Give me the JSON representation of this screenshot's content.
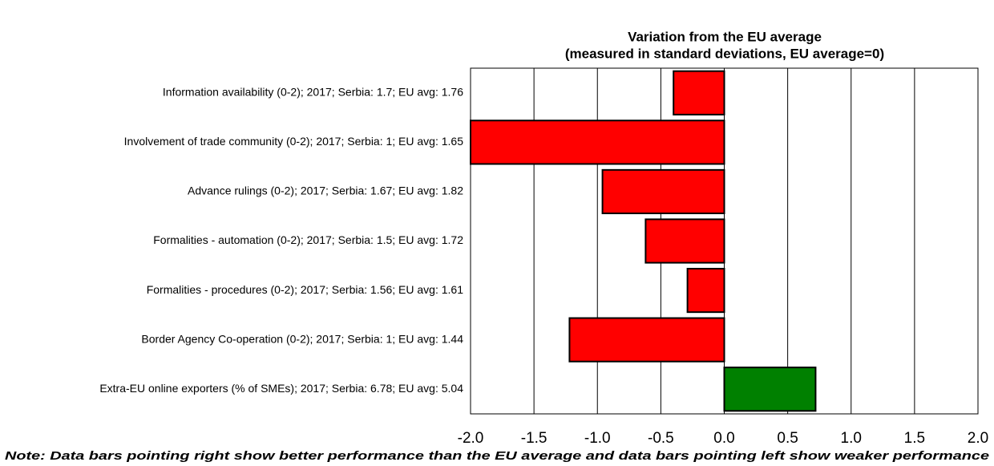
{
  "chart_data": {
    "type": "barh",
    "title": "Variation from the EU average",
    "subtitle": "(measured in standard deviations, EU average=0)",
    "note": "Note: Data bars pointing right show better performance than the EU average and data bars pointing left show weaker performance",
    "categories": [
      "Information availability (0-2); 2017; Serbia: 1.7; EU avg: 1.76",
      "Involvement of trade community (0-2); 2017; Serbia: 1; EU avg: 1.65",
      "Advance rulings (0-2); 2017; Serbia: 1.67; EU avg: 1.82",
      "Formalities - automation (0-2); 2017; Serbia: 1.5; EU avg: 1.72",
      "Formalities - procedures (0-2); 2017; Serbia: 1.56; EU avg: 1.61",
      "Border Agency Co-operation (0-2); 2017; Serbia: 1; EU avg: 1.44",
      "Extra-EU online exporters (% of SMEs); 2017; Serbia: 6.78; EU avg: 5.04"
    ],
    "values": [
      -0.4,
      -2.0,
      -0.96,
      -0.62,
      -0.29,
      -1.22,
      0.72
    ],
    "colors": [
      "#ff0000",
      "#ff0000",
      "#ff0000",
      "#ff0000",
      "#ff0000",
      "#ff0000",
      "#008000"
    ],
    "xlim": [
      -2,
      2
    ],
    "xticks": [
      {
        "value": -2,
        "label": "-2.0"
      },
      -1.5,
      {
        "value": -1,
        "label": "-1.0"
      },
      -0.5,
      {
        "value": 0,
        "label": "0.0"
      },
      0.5,
      {
        "value": 1,
        "label": "1.0"
      },
      1.5,
      {
        "value": 2,
        "label": "2.0"
      }
    ],
    "grid": true
  }
}
